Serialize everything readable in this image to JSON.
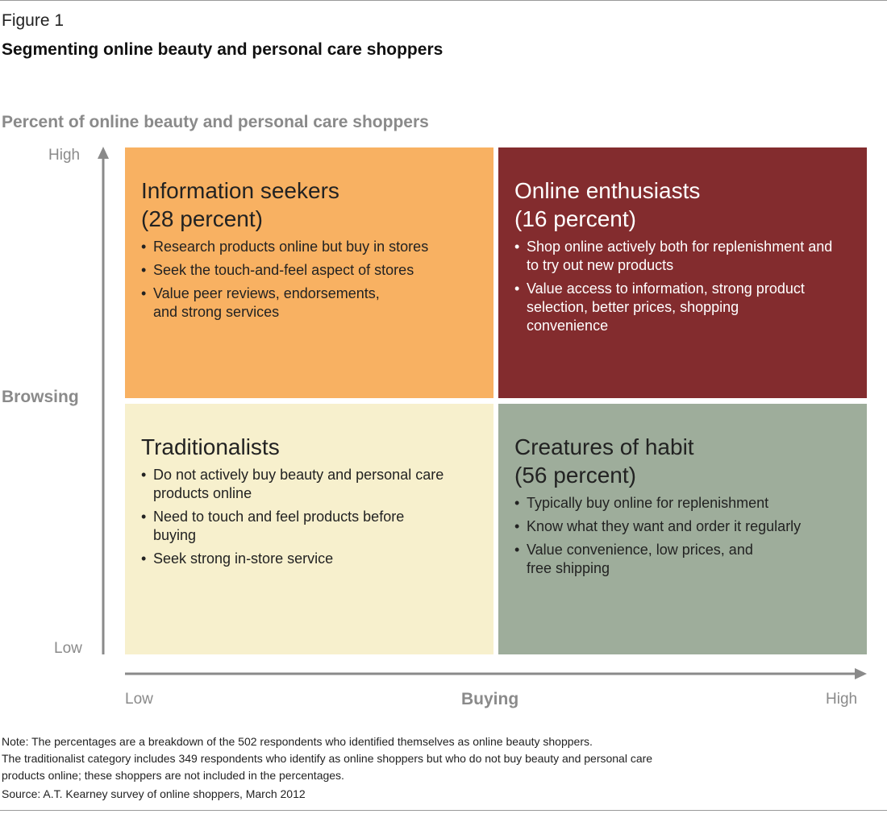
{
  "figure": {
    "label": "Figure 1",
    "title": "Segmenting online beauty and personal care shoppers",
    "subtitle": "Percent of online beauty and personal care shoppers"
  },
  "axes": {
    "y_title": "Browsing",
    "y_high": "High",
    "y_low": "Low",
    "x_title": "Buying",
    "x_low": "Low",
    "x_high": "High"
  },
  "quadrants": {
    "upper_left": {
      "title": "Information seekers",
      "percent": "(28 percent)",
      "bullets": [
        "Research products online but buy in stores",
        "Seek the touch-and-feel aspect of stores",
        "Value peer reviews, endorsements, and strong services"
      ]
    },
    "upper_right": {
      "title": "Online enthusiasts",
      "percent": "(16 percent)",
      "bullets": [
        "Shop online actively both for replenishment and to try out new products",
        "Value access to information, strong product selection, better prices, shopping convenience"
      ]
    },
    "lower_left": {
      "title": "Traditionalists",
      "bullets": [
        "Do not actively buy beauty and personal care products online",
        "Need to touch and feel products before buying",
        "Seek strong in-store service"
      ]
    },
    "lower_right": {
      "title": "Creatures of habit",
      "percent": "(56 percent)",
      "bullets": [
        "Typically buy online for replenishment",
        "Know what they want and order it regularly",
        "Value convenience, low prices, and free shipping"
      ]
    }
  },
  "colors": {
    "upper_left": "#f8b162",
    "upper_right": "#832c2e",
    "lower_left": "#f7f0cd",
    "lower_right": "#9ead9b",
    "axis": "#8a8a8a"
  },
  "notes": {
    "note_line1": "Note: The percentages are a breakdown of the 502 respondents who identified themselves as online beauty shoppers.",
    "note_line2": "The traditionalist category includes 349 respondents who identify as online shoppers but who do not buy beauty and personal care",
    "note_line3": "products online; these shoppers are not included in the percentages.",
    "source": "Source: A.T. Kearney survey of online shoppers, March 2012"
  }
}
